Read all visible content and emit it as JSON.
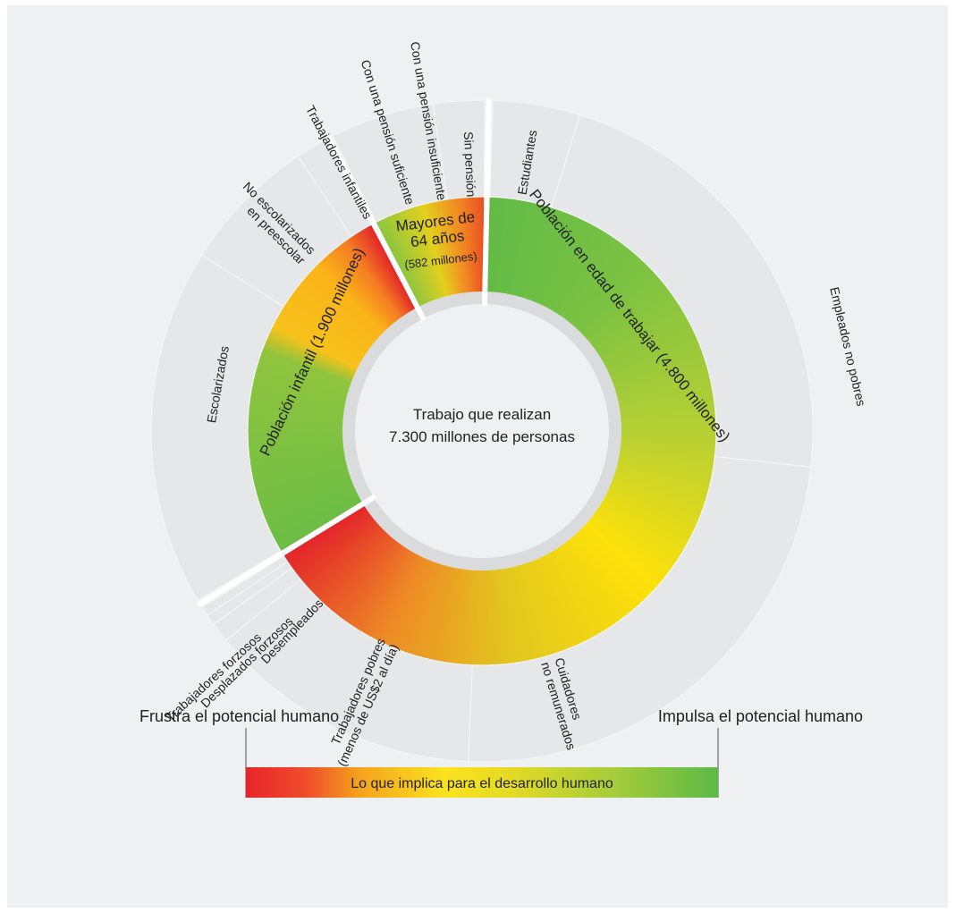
{
  "chart_data": {
    "type": "sunburst",
    "center_label": [
      "Trabajo que realizan",
      "7.300 millones de personas"
    ],
    "groups": [
      {
        "name": "Población en edad de trabajar (4.800 millones)",
        "value": 4800,
        "segments": [
          {
            "name": "Estudiantes",
            "share": 0.065
          },
          {
            "name": "Empleados no pobres",
            "share": 0.335
          },
          {
            "name": "Cuidadores no remunerados",
            "share": 0.365
          },
          {
            "name": "Trabajadores pobres (menos de US$2 al día)",
            "share": 0.205
          },
          {
            "name": "Desempleados",
            "share": 0.015
          },
          {
            "name": "Desplazados forzosos",
            "share": 0.008
          },
          {
            "name": "Trabajadores forzosos",
            "share": 0.007
          }
        ]
      },
      {
        "name": "Población infantil (1.900 millones)",
        "value": 1900,
        "segments": [
          {
            "name": "Escolarizados",
            "share": 0.68
          },
          {
            "name": "No escolarizados en preescolar",
            "share": 0.26
          },
          {
            "name": "Trabajadores infantiles",
            "share": 0.06
          }
        ]
      },
      {
        "name": "Mayores de 64 años (582 millones)",
        "value": 582,
        "segments": [
          {
            "name": "Con una pensión suficiente",
            "share": 0.34
          },
          {
            "name": "Con una pensión insuficiente",
            "share": 0.33
          },
          {
            "name": "Sin pensión",
            "share": 0.33
          }
        ]
      }
    ],
    "legend": {
      "left": "Frustra el potencial humano",
      "right": "Impulsa el potencial humano",
      "bar_label": "Lo que implica para el desarrollo humano",
      "colors": [
        "#e8242a",
        "#fbe10b",
        "#5cb947"
      ]
    }
  }
}
